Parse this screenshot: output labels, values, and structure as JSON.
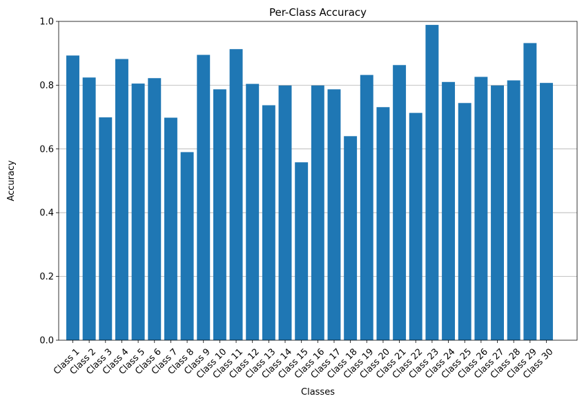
{
  "chart_data": {
    "type": "bar",
    "title": "Per-Class Accuracy",
    "xlabel": "Classes",
    "ylabel": "Accuracy",
    "ylim": [
      0,
      1.0
    ],
    "yticks": [
      "0.0",
      "0.2",
      "0.4",
      "0.6",
      "0.8",
      "1.0"
    ],
    "grid": "horizontal",
    "bar_color": "#1f77b4",
    "categories": [
      "Class 1",
      "Class 2",
      "Class 3",
      "Class 4",
      "Class 5",
      "Class 6",
      "Class 7",
      "Class 8",
      "Class 9",
      "Class 10",
      "Class 11",
      "Class 12",
      "Class 13",
      "Class 14",
      "Class 15",
      "Class 16",
      "Class 17",
      "Class 18",
      "Class 19",
      "Class 20",
      "Class 21",
      "Class 22",
      "Class 23",
      "Class 24",
      "Class 25",
      "Class 26",
      "Class 27",
      "Class 28",
      "Class 29",
      "Class 30"
    ],
    "values": [
      0.893,
      0.824,
      0.699,
      0.882,
      0.805,
      0.822,
      0.698,
      0.59,
      0.895,
      0.787,
      0.913,
      0.804,
      0.737,
      0.799,
      0.558,
      0.799,
      0.787,
      0.64,
      0.832,
      0.731,
      0.863,
      0.713,
      0.989,
      0.81,
      0.744,
      0.826,
      0.799,
      0.815,
      0.932,
      0.807
    ]
  }
}
